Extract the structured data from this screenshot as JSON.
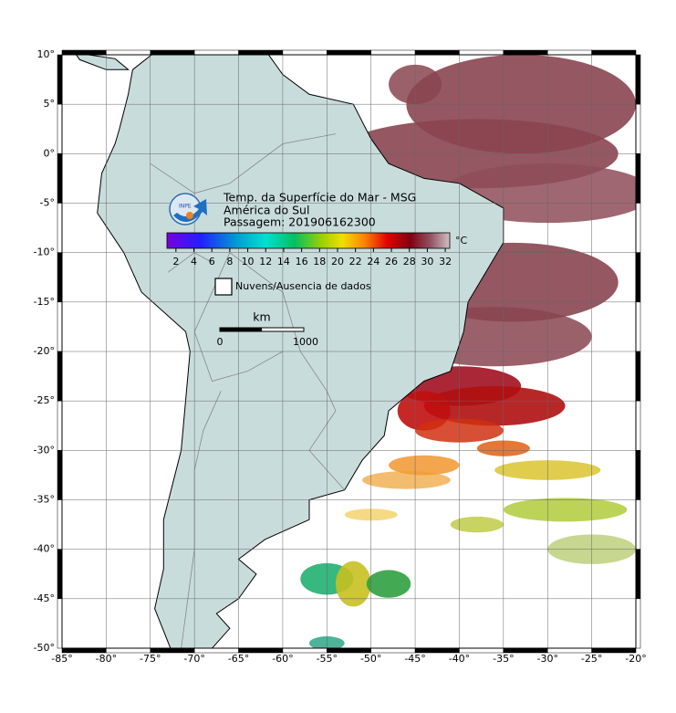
{
  "title": "Temp. da Superfície do Mar - MSG",
  "region": "América do Sul",
  "pass": "Passagem: 201906162300",
  "logo": "INPE",
  "colorbar": {
    "unit": "°C",
    "range": [
      1,
      32.5
    ],
    "ticks": [
      2,
      4,
      6,
      8,
      10,
      12,
      14,
      16,
      18,
      20,
      22,
      24,
      26,
      28,
      30,
      32
    ]
  },
  "legend": "Nuvens/Ausencia de dados",
  "scale_bar": {
    "unit": "km",
    "labels": [
      "0",
      "1000"
    ]
  },
  "map": {
    "lon_ticks": [
      {
        "value": -85,
        "label": "-85°"
      },
      {
        "value": -80,
        "label": "-80°"
      },
      {
        "value": -75,
        "label": "-75°"
      },
      {
        "value": -70,
        "label": "-70°"
      },
      {
        "value": -65,
        "label": "-65°"
      },
      {
        "value": -60,
        "label": "-60°"
      },
      {
        "value": -55,
        "label": "-55°"
      },
      {
        "value": -50,
        "label": "-50°"
      },
      {
        "value": -45,
        "label": "-45°"
      },
      {
        "value": -40,
        "label": "-40°"
      },
      {
        "value": -35,
        "label": "-35°"
      },
      {
        "value": -30,
        "label": "-30°"
      },
      {
        "value": -25,
        "label": "-25°"
      },
      {
        "value": -20,
        "label": "-20°"
      }
    ],
    "lat_ticks": [
      {
        "value": 10,
        "label": "10°"
      },
      {
        "value": 5,
        "label": "5°"
      },
      {
        "value": 0,
        "label": "0°"
      },
      {
        "value": -5,
        "label": "-5°"
      },
      {
        "value": -10,
        "label": "-10°"
      },
      {
        "value": -15,
        "label": "-15°"
      },
      {
        "value": -20,
        "label": "-20°"
      },
      {
        "value": -25,
        "label": "-25°"
      },
      {
        "value": -30,
        "label": "-30°"
      },
      {
        "value": -35,
        "label": "-35°"
      },
      {
        "value": -40,
        "label": "-40°"
      },
      {
        "value": -45,
        "label": "-45°"
      },
      {
        "value": -50,
        "label": "-50°"
      }
    ]
  }
}
